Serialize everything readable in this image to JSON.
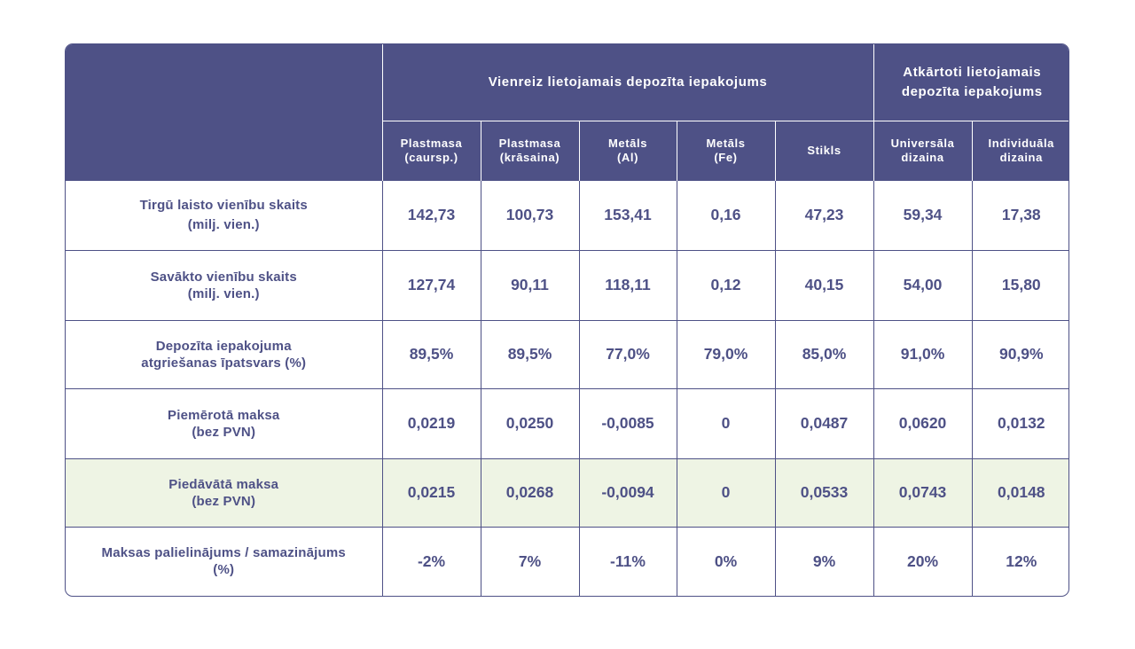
{
  "header": {
    "group_single_use": "Vienreiz lietojamais depozīta iepakojums",
    "group_reusable_line1": "Atkārtoti lietojamais",
    "group_reusable_line2": "depozīta iepakojums",
    "columns": [
      {
        "line1": "Plastmasa",
        "line2": "(caursp.)"
      },
      {
        "line1": "Plastmasa",
        "line2": "(krāsaina)"
      },
      {
        "line1": "Metāls",
        "line2": "(Al)"
      },
      {
        "line1": "Metāls",
        "line2": "(Fe)"
      },
      {
        "line1": "Stikls",
        "line2": ""
      },
      {
        "line1": "Universāla",
        "line2": "dizaina"
      },
      {
        "line1": "Individuāla",
        "line2": "dizaina"
      }
    ]
  },
  "rows": [
    {
      "label1": "Tirgū laisto vienību skaits",
      "label2": "(milj. vien.)",
      "values": [
        "142,73",
        "100,73",
        "153,41",
        "0,16",
        "47,23",
        "59,34",
        "17,38"
      ]
    },
    {
      "label1": "Savākto vienību skaits",
      "label2": "(milj. vien.)",
      "values": [
        "127,74",
        "90,11",
        "118,11",
        "0,12",
        "40,15",
        "54,00",
        "15,80"
      ]
    },
    {
      "label1": "Depozīta iepakojuma",
      "label2": "atgriešanas īpatsvars (%)",
      "values": [
        "89,5%",
        "89,5%",
        "77,0%",
        "79,0%",
        "85,0%",
        "91,0%",
        "90,9%"
      ]
    },
    {
      "label1": "Piemērotā maksa",
      "label2": "(bez PVN)",
      "values": [
        "0,0219",
        "0,0250",
        "-0,0085",
        "0",
        "0,0487",
        "0,0620",
        "0,0132"
      ]
    },
    {
      "label1": "Piedāvātā maksa",
      "label2": "(bez PVN)",
      "values": [
        "0,0215",
        "0,0268",
        "-0,0094",
        "0",
        "0,0533",
        "0,0743",
        "0,0148"
      ]
    },
    {
      "label1": "Maksas palielinājums / samazinājums",
      "label2": "(%)",
      "values": [
        "-2%",
        "7%",
        "-11%",
        "0%",
        "9%",
        "20%",
        "12%"
      ]
    }
  ],
  "colors": {
    "header_bg": "#4e5186",
    "highlight_row_bg": "#eef4e4",
    "text": "#4e5186"
  }
}
